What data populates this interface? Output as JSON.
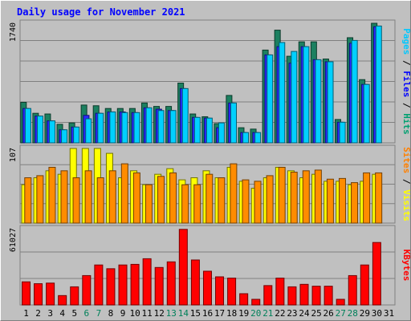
{
  "chart_data": {
    "type": "bar",
    "title": "Daily usage for November 2021",
    "categories": [
      "1",
      "2",
      "3",
      "4",
      "5",
      "6",
      "7",
      "8",
      "9",
      "10",
      "11",
      "12",
      "13",
      "14",
      "15",
      "16",
      "17",
      "18",
      "19",
      "20",
      "21",
      "22",
      "23",
      "24",
      "25",
      "26",
      "27",
      "28",
      "29",
      "30",
      "31"
    ],
    "weekend_days": [
      "6",
      "7",
      "13",
      "14",
      "20",
      "21",
      "27",
      "28"
    ],
    "panels": [
      {
        "name": "traffic",
        "max_label": "1740",
        "ylim": [
          0,
          1740
        ],
        "right_label": [
          {
            "text": "Pages",
            "color": "#00c8ff"
          },
          {
            "text": " / ",
            "color": "#000000"
          },
          {
            "text": "Files",
            "color": "#0000ff"
          },
          {
            "text": " / ",
            "color": "#000000"
          },
          {
            "text": "Hits",
            "color": "#00a070"
          }
        ],
        "series": [
          {
            "name": "Hits",
            "color": "#1c8060",
            "values": [
              590,
              430,
              420,
              270,
              290,
              550,
              540,
              500,
              500,
              500,
              580,
              530,
              530,
              870,
              420,
              380,
              280,
              690,
              220,
              200,
              1350,
              1640,
              1260,
              1470,
              1470,
              1220,
              340,
              1530,
              920,
              1740,
              0
            ]
          },
          {
            "name": "Files",
            "color": "#2828ff",
            "values": [
              500,
              390,
              320,
              190,
              230,
              400,
              430,
              450,
              450,
              440,
              510,
              490,
              470,
              790,
              370,
              360,
              220,
              580,
              150,
              150,
              1280,
              1400,
              1160,
              1400,
              1210,
              1180,
              300,
              1450,
              850,
              1690,
              0
            ]
          },
          {
            "name": "Pages",
            "color": "#00d0ff",
            "values": [
              500,
              390,
              320,
              190,
              230,
              350,
              430,
              450,
              440,
              440,
              510,
              470,
              470,
              790,
              370,
              360,
              290,
              580,
              150,
              150,
              1280,
              1460,
              1330,
              1400,
              1210,
              1180,
              300,
              1490,
              850,
              1700,
              0
            ]
          }
        ]
      },
      {
        "name": "visits",
        "max_label": "107",
        "ylim": [
          0,
          107
        ],
        "right_label": [
          {
            "text": "Sites",
            "color": "#ff8000"
          },
          {
            "text": " / ",
            "color": "#000000"
          },
          {
            "text": "Visits",
            "color": "#ffff00"
          }
        ],
        "series": [
          {
            "name": "Visits",
            "color": "#ffff00",
            "values": [
              55,
              65,
              75,
              70,
              107,
              107,
              107,
              100,
              65,
              75,
              55,
              70,
              78,
              62,
              65,
              75,
              65,
              80,
              60,
              50,
              65,
              80,
              75,
              65,
              70,
              60,
              60,
              55,
              60,
              70,
              0
            ]
          },
          {
            "name": "Sites",
            "color": "#ff8c00",
            "values": [
              65,
              68,
              80,
              75,
              65,
              75,
              65,
              75,
              85,
              72,
              55,
              67,
              72,
              55,
              55,
              70,
              65,
              85,
              62,
              60,
              68,
              80,
              73,
              75,
              76,
              63,
              64,
              58,
              72,
              72,
              0
            ]
          }
        ]
      },
      {
        "name": "volume",
        "max_label": "61027",
        "ylim": [
          0,
          61027
        ],
        "right_label": [
          {
            "text": "KBytes",
            "color": "#ff0000"
          }
        ],
        "series": [
          {
            "name": "KBytes",
            "color": "#ff0000",
            "values": [
              18500,
              17000,
              17500,
              7500,
              14500,
              23500,
              32000,
              29000,
              32000,
              32500,
              37000,
              30000,
              34500,
              60500,
              36000,
              27000,
              22500,
              21500,
              9000,
              4500,
              15500,
              21500,
              14500,
              16500,
              15000,
              15000,
              4500,
              23500,
              32000,
              50000,
              0
            ]
          }
        ]
      }
    ]
  }
}
